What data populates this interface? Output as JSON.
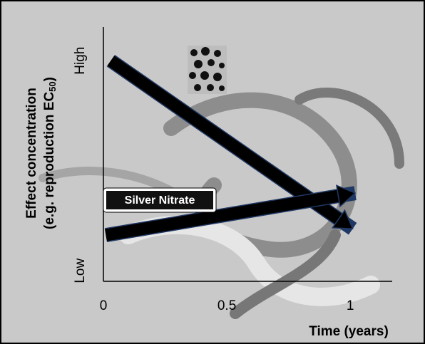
{
  "chart_data": {
    "type": "arrow",
    "ylabel": [
      "Effect concentration",
      "(e.g. reproduction EC",
      "50",
      ")"
    ],
    "xlabel": "Time (years)",
    "xlim": [
      0,
      1.17
    ],
    "xticks": [
      0,
      0.5,
      1
    ],
    "ylim": [
      -0.05,
      1.16
    ],
    "yticks": [
      {
        "value": 0,
        "label": "Low"
      },
      {
        "value": 1,
        "label": "High"
      }
    ],
    "series": [
      {
        "color": "#000000",
        "x": [
          0.03,
          1.01
        ],
        "values": [
          1.0,
          0.2
        ]
      },
      {
        "name": "Silver Nitrate",
        "color": "#000000",
        "x": [
          0.01,
          1.02
        ],
        "values": [
          0.17,
          0.37
        ]
      }
    ]
  }
}
